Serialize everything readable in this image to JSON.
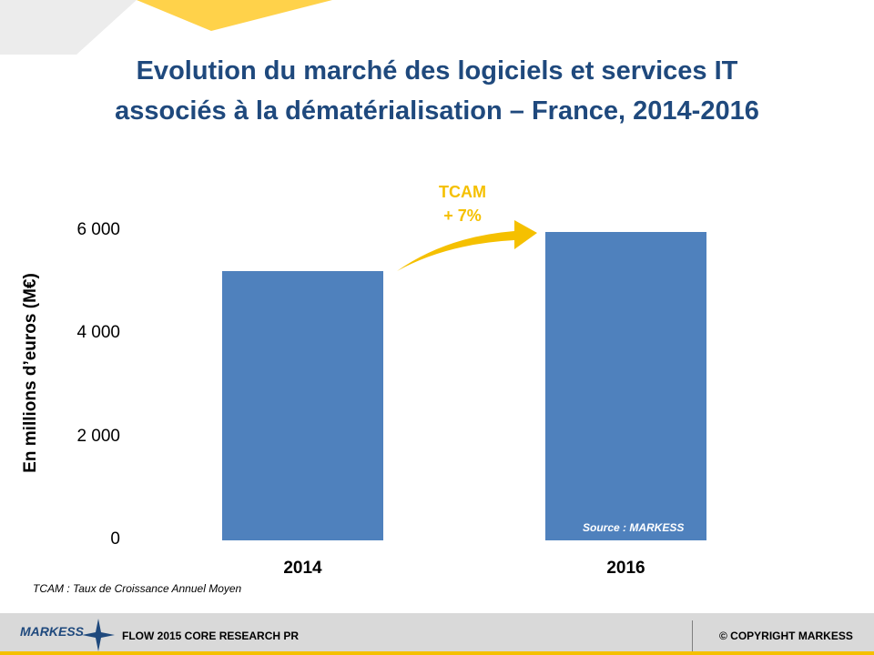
{
  "title_line1": "Evolution du marché des logiciels et services IT",
  "title_line2": "associés à la dématérialisation – France, 2014-2016",
  "annotation": {
    "line1": "TCAM",
    "line2": "+ 7%"
  },
  "source": "Source : MARKESS",
  "footnote": "TCAM : Taux de Croissance Annuel Moyen",
  "footer": {
    "logo": "MARKESS",
    "label": "FLOW 2015  CORE RESEARCH  PR",
    "copyright": "© COPYRIGHT MARKESS"
  },
  "colors": {
    "bar": "#4f81bd",
    "title": "#1f497d",
    "accent": "#f5c000"
  },
  "chart_data": {
    "type": "bar",
    "title": "Evolution du marché des logiciels et services IT associés à la dématérialisation – France, 2014-2016",
    "categories": [
      "2014",
      "2016"
    ],
    "values": [
      5230,
      5990
    ],
    "ylabel": "En millions d’euros (M€)",
    "ylim": [
      0,
      6000
    ],
    "yticks": [
      {
        "value": 0,
        "label": "0"
      },
      {
        "value": 2000,
        "label": "2 000"
      },
      {
        "value": 4000,
        "label": "4 000"
      },
      {
        "value": 6000,
        "label": "6 000"
      }
    ],
    "grid": false,
    "legend": "none"
  }
}
